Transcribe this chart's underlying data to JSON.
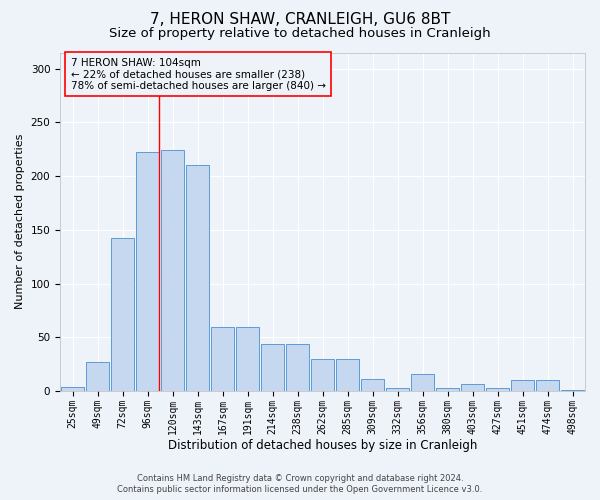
{
  "title": "7, HERON SHAW, CRANLEIGH, GU6 8BT",
  "subtitle": "Size of property relative to detached houses in Cranleigh",
  "xlabel": "Distribution of detached houses by size in Cranleigh",
  "ylabel": "Number of detached properties",
  "categories": [
    "25sqm",
    "49sqm",
    "72sqm",
    "96sqm",
    "120sqm",
    "143sqm",
    "167sqm",
    "191sqm",
    "214sqm",
    "238sqm",
    "262sqm",
    "285sqm",
    "309sqm",
    "332sqm",
    "356sqm",
    "380sqm",
    "403sqm",
    "427sqm",
    "451sqm",
    "474sqm",
    "498sqm"
  ],
  "values": [
    4,
    27,
    142,
    222,
    224,
    210,
    60,
    60,
    44,
    44,
    30,
    30,
    11,
    3,
    16,
    3,
    7,
    3,
    10,
    10,
    1
  ],
  "bar_color": "#c5d8f0",
  "bar_edge_color": "#5b9bd5",
  "background_color": "#eef2f9",
  "grid_color": "#ffffff",
  "annotation_box_text": "7 HERON SHAW: 104sqm\n← 22% of detached houses are smaller (238)\n78% of semi-detached houses are larger (840) →",
  "footer_line1": "Contains HM Land Registry data © Crown copyright and database right 2024.",
  "footer_line2": "Contains public sector information licensed under the Open Government Licence v3.0.",
  "ylim": [
    0,
    315
  ],
  "title_fontsize": 11,
  "subtitle_fontsize": 9.5,
  "xlabel_fontsize": 8.5,
  "ylabel_fontsize": 8,
  "tick_fontsize": 7,
  "annotation_fontsize": 7.5,
  "footer_fontsize": 6,
  "red_line_x": 3.47
}
